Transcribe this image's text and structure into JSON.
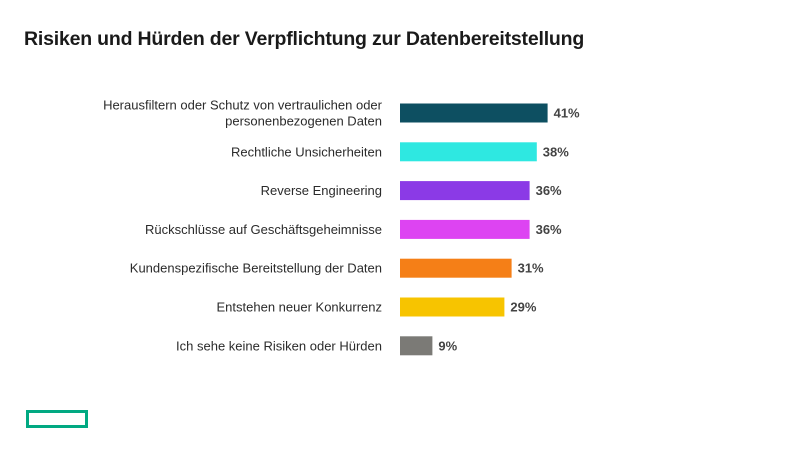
{
  "title": "Risiken und Hürden der Verpflichtung zur Datenbereitstellung",
  "logo": {
    "icon": "hpe-green-rectangle-logo",
    "color": "#01a982"
  },
  "chart_data": {
    "type": "bar",
    "orientation": "horizontal",
    "title": "Risiken und Hürden der Verpflichtung zur Datenbereitstellung",
    "xlabel": "",
    "ylabel": "",
    "xlim": [
      0,
      50
    ],
    "grid": false,
    "legend": "none",
    "value_suffix": "%",
    "categories": [
      [
        "Herausfiltern oder Schutz von vertraulichen oder",
        "personenbezogenen Daten"
      ],
      [
        "Rechtliche Unsicherheiten"
      ],
      [
        "Reverse Engineering"
      ],
      [
        "Rückschlüsse auf Geschäftsgeheimnisse"
      ],
      [
        "Kundenspezifische Bereitstellung der Daten"
      ],
      [
        "Entstehen neuer Konkurrenz"
      ],
      [
        "Ich sehe keine Risiken oder Hürden"
      ]
    ],
    "values": [
      41,
      38,
      36,
      36,
      31,
      29,
      9
    ],
    "value_labels": [
      "41%",
      "38%",
      "36%",
      "36%",
      "31%",
      "29%",
      "9%"
    ],
    "colors": [
      "#0d4f61",
      "#2ee8e1",
      "#8b3ae6",
      "#dd44f2",
      "#f57f17",
      "#f7c400",
      "#7b7a76"
    ]
  }
}
